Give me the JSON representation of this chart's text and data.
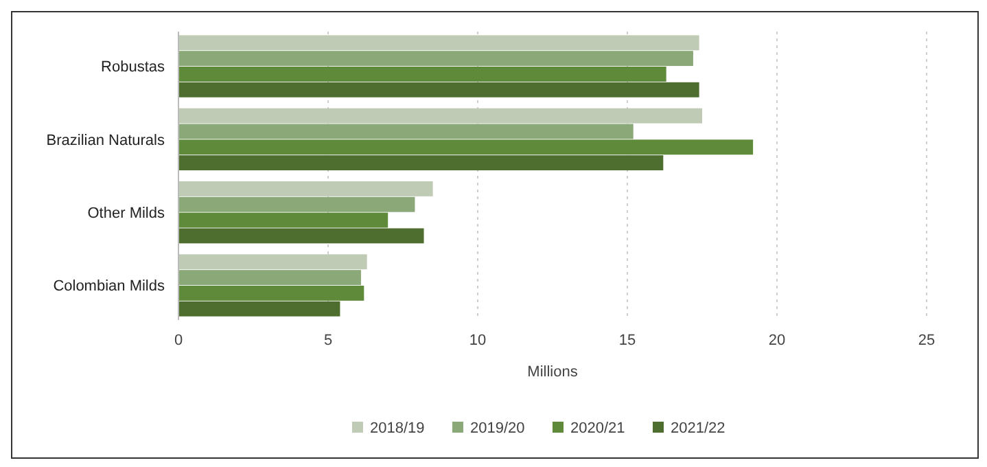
{
  "chart_data": {
    "type": "bar",
    "orientation": "horizontal",
    "xlabel": "Millions",
    "categories": [
      "Robustas",
      "Brazilian Naturals",
      "Other Milds",
      "Colombian Milds"
    ],
    "series": [
      {
        "name": "2018/19",
        "color": "#bfcbb4",
        "values": [
          17.4,
          17.5,
          8.5,
          6.3
        ]
      },
      {
        "name": "2019/20",
        "color": "#8ba878",
        "values": [
          17.2,
          15.2,
          7.9,
          6.1
        ]
      },
      {
        "name": "2020/21",
        "color": "#5f8a3a",
        "values": [
          16.3,
          19.2,
          7.0,
          6.2
        ]
      },
      {
        "name": "2021/22",
        "color": "#4e6e2f",
        "values": [
          17.4,
          16.2,
          8.2,
          5.4
        ]
      }
    ],
    "xlim": [
      0,
      25
    ],
    "xticks": [
      0,
      5,
      10,
      15,
      20,
      25
    ],
    "grid": "x",
    "legend": "bottom"
  }
}
